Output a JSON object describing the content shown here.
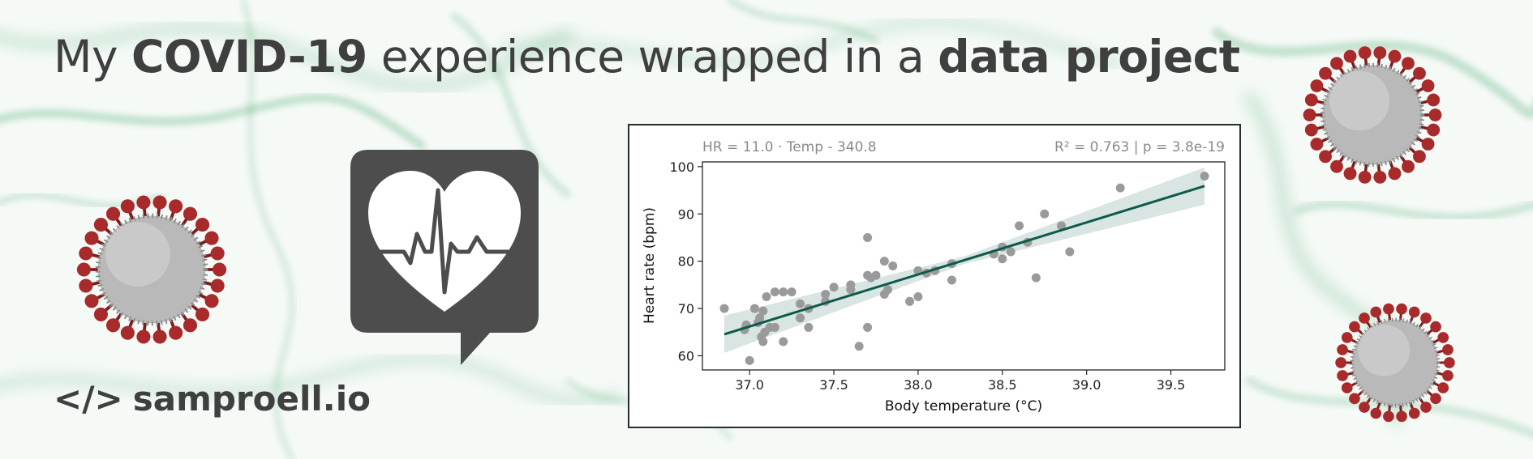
{
  "headline": {
    "part1": "My ",
    "bold1": "COVID-19",
    "part2": " experience wrapped in a ",
    "bold2": "data project"
  },
  "site": {
    "code_icon": "</>",
    "url": "samproell.io"
  },
  "icons": {
    "heart": "heartbeat-chat-bubble-icon",
    "virus": "coronavirus-icon"
  },
  "colors": {
    "text": "#3f3f3f",
    "line": "#0d5a4c",
    "ci": "#cfdedc",
    "points": "#9a9a9a",
    "virus_red": "#a82a2a",
    "smoke": "#2e9a5a"
  },
  "chart_data": {
    "type": "scatter",
    "equation": "HR = 11.0 · Temp - 340.8",
    "stats": "R² = 0.763 | p = 3.8e-19",
    "xlabel": "Body temperature (°C)",
    "ylabel": "Heart rate (bpm)",
    "xlim": [
      36.72,
      39.82
    ],
    "ylim": [
      57,
      101
    ],
    "xticks": [
      37.0,
      37.5,
      38.0,
      38.5,
      39.0,
      39.5
    ],
    "yticks": [
      60,
      70,
      80,
      90,
      100
    ],
    "grid": false,
    "points": [
      [
        36.85,
        70
      ],
      [
        36.97,
        65.5
      ],
      [
        36.98,
        66.5
      ],
      [
        37.0,
        59
      ],
      [
        37.03,
        70
      ],
      [
        37.05,
        67
      ],
      [
        37.06,
        68
      ],
      [
        37.07,
        64
      ],
      [
        37.08,
        63
      ],
      [
        37.08,
        69.5
      ],
      [
        37.09,
        65
      ],
      [
        37.1,
        72.5
      ],
      [
        37.12,
        66
      ],
      [
        37.15,
        73.5
      ],
      [
        37.15,
        66
      ],
      [
        37.2,
        63
      ],
      [
        37.2,
        73.5
      ],
      [
        37.25,
        73.5
      ],
      [
        37.3,
        71
      ],
      [
        37.3,
        68
      ],
      [
        37.35,
        66
      ],
      [
        37.35,
        70
      ],
      [
        37.45,
        71.5
      ],
      [
        37.45,
        73
      ],
      [
        37.5,
        74.5
      ],
      [
        37.6,
        74
      ],
      [
        37.6,
        75
      ],
      [
        37.65,
        62
      ],
      [
        37.7,
        66
      ],
      [
        37.7,
        85
      ],
      [
        37.7,
        77
      ],
      [
        37.72,
        76.5
      ],
      [
        37.75,
        77
      ],
      [
        37.8,
        80
      ],
      [
        37.8,
        73
      ],
      [
        37.82,
        74
      ],
      [
        37.85,
        79
      ],
      [
        37.95,
        71.5
      ],
      [
        38.0,
        72.5
      ],
      [
        38.0,
        78
      ],
      [
        38.05,
        77.5
      ],
      [
        38.1,
        78
      ],
      [
        38.2,
        76
      ],
      [
        38.2,
        79.5
      ],
      [
        38.45,
        81.5
      ],
      [
        38.5,
        80.5
      ],
      [
        38.5,
        83
      ],
      [
        38.55,
        82
      ],
      [
        38.6,
        87.5
      ],
      [
        38.65,
        84
      ],
      [
        38.7,
        76.5
      ],
      [
        38.75,
        90
      ],
      [
        38.85,
        87.5
      ],
      [
        38.9,
        82
      ],
      [
        39.2,
        95.5
      ],
      [
        39.7,
        98
      ]
    ],
    "fit": {
      "slope": 11.0,
      "intercept": -340.8,
      "x_range": [
        36.85,
        39.7
      ]
    }
  }
}
